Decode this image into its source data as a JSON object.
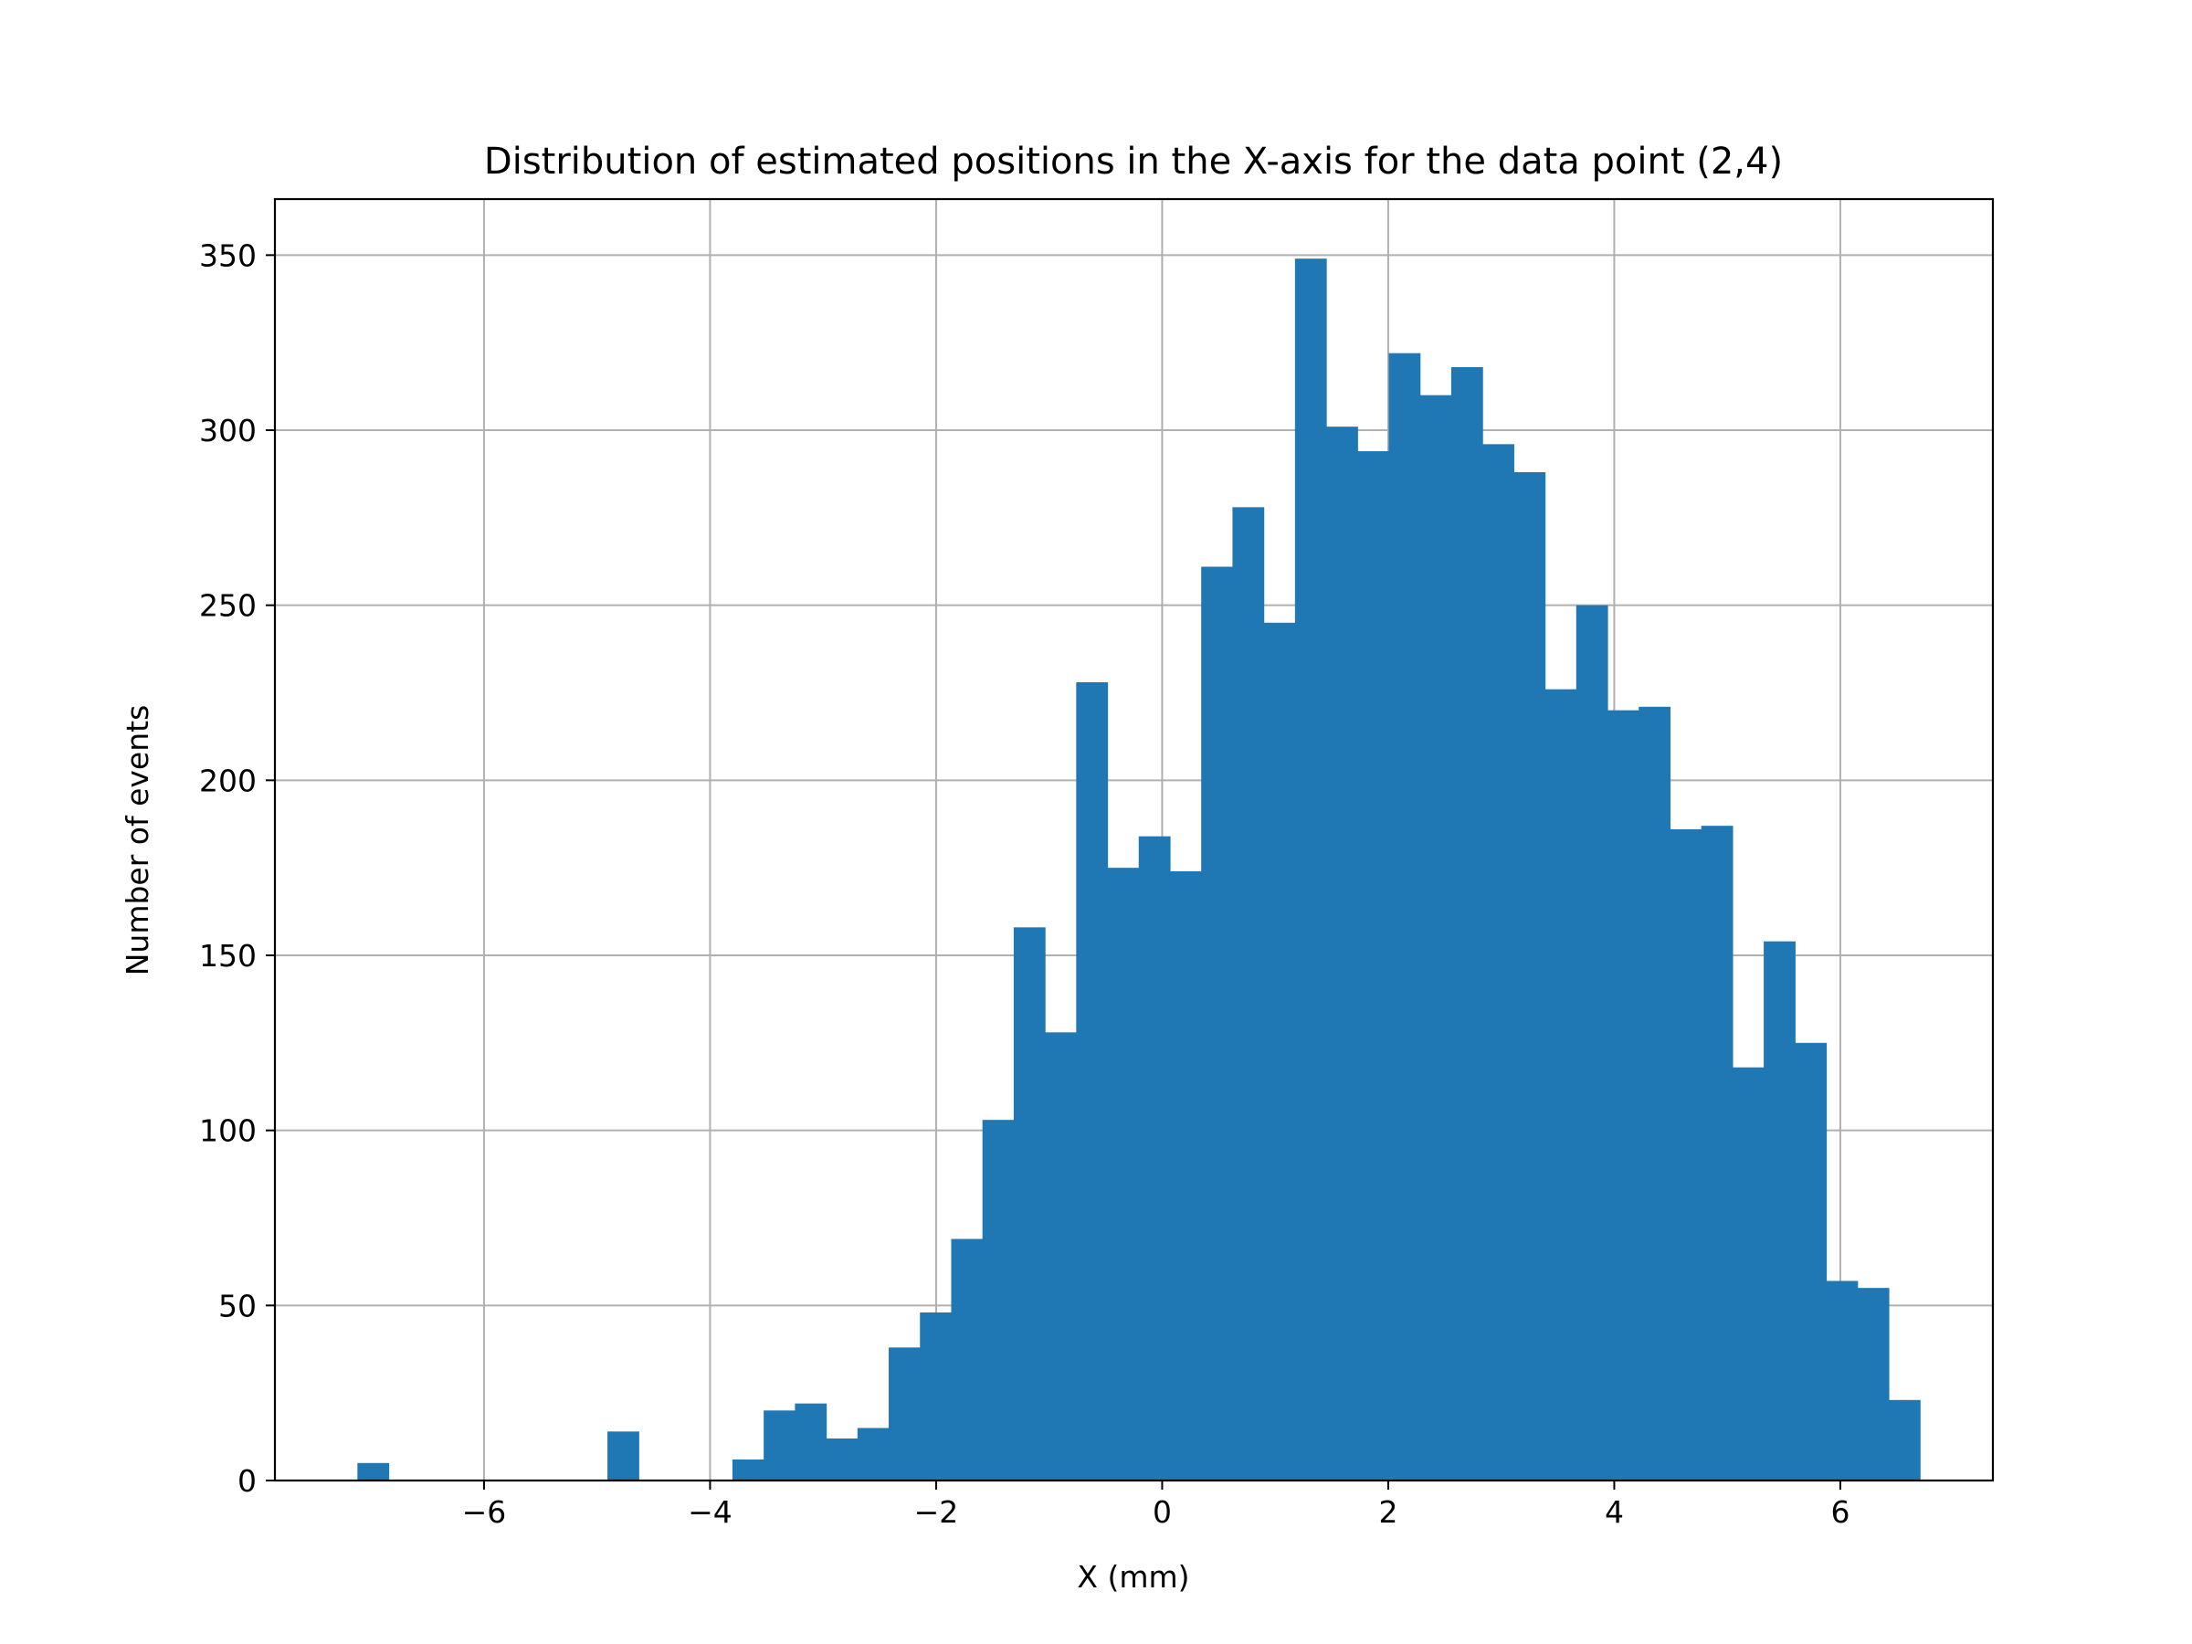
{
  "chart_data": {
    "type": "bar",
    "title": "Distribution of estimated positions in the X-axis for the data point (2,4)",
    "xlabel": "X (mm)",
    "ylabel": "Number of events",
    "xlim": [
      -7.85,
      7.35
    ],
    "ylim": [
      0,
      366
    ],
    "xticks": [
      -6,
      -4,
      -2,
      0,
      2,
      4,
      6
    ],
    "xtick_labels": [
      "−6",
      "−4",
      "−2",
      "0",
      "2",
      "4",
      "6"
    ],
    "yticks": [
      0,
      50,
      100,
      150,
      200,
      250,
      300,
      350
    ],
    "ytick_labels": [
      "0",
      "50",
      "100",
      "150",
      "200",
      "250",
      "300",
      "350"
    ],
    "grid": true,
    "bar_color": "#1f77b4",
    "bin_start": -7.12,
    "bin_width": 0.2765,
    "counts": [
      5,
      0,
      0,
      0,
      0,
      0,
      0,
      0,
      14,
      0,
      0,
      0,
      6,
      20,
      22,
      12,
      15,
      38,
      48,
      69,
      103,
      158,
      128,
      228,
      175,
      184,
      174,
      261,
      278,
      245,
      349,
      301,
      294,
      322,
      310,
      318,
      296,
      288,
      226,
      250,
      220,
      221,
      186,
      187,
      118,
      154,
      125,
      57,
      55,
      23
    ]
  }
}
